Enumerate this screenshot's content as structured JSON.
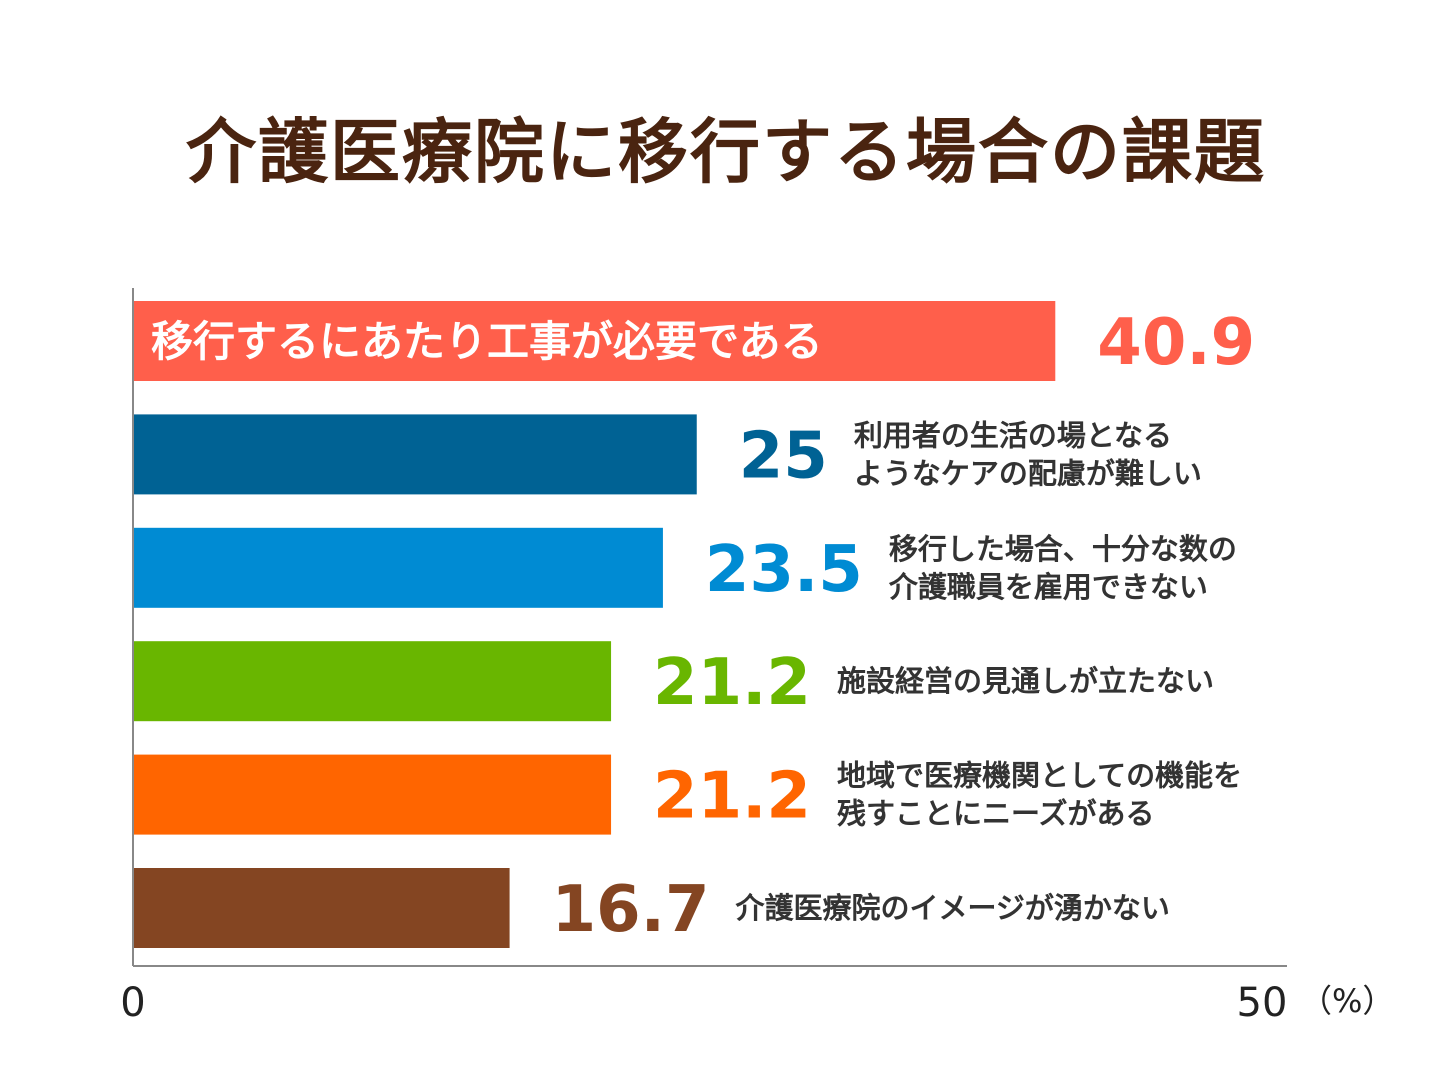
{
  "chart_data": {
    "type": "bar",
    "orientation": "horizontal",
    "title": "介護医療院に移行する場合の課題",
    "categories": [
      [
        "移行するにあたり工事が必要である"
      ],
      [
        "利用者の生活の場となる",
        "ようなケアの配慮が難しい"
      ],
      [
        "移行した場合、十分な数の",
        "介護職員を雇用できない"
      ],
      [
        "施設経営の見通しが立たない"
      ],
      [
        "地域で医療機関としての機能を",
        "残すことにニーズがある"
      ],
      [
        "介護医療院のイメージが湧かない"
      ]
    ],
    "values": [
      40.9,
      25,
      23.5,
      21.2,
      21.2,
      16.7
    ],
    "value_labels": [
      "40.9",
      "25",
      "23.5",
      "21.2",
      "21.2",
      "16.7"
    ],
    "colors": [
      "#ff5f4b",
      "#006294",
      "#008bd3",
      "#69b600",
      "#ff6500",
      "#844522"
    ],
    "xlim": [
      0,
      50
    ],
    "x_ticks": [
      "0",
      "50"
    ],
    "unit_label": "（%）",
    "grid": false
  }
}
